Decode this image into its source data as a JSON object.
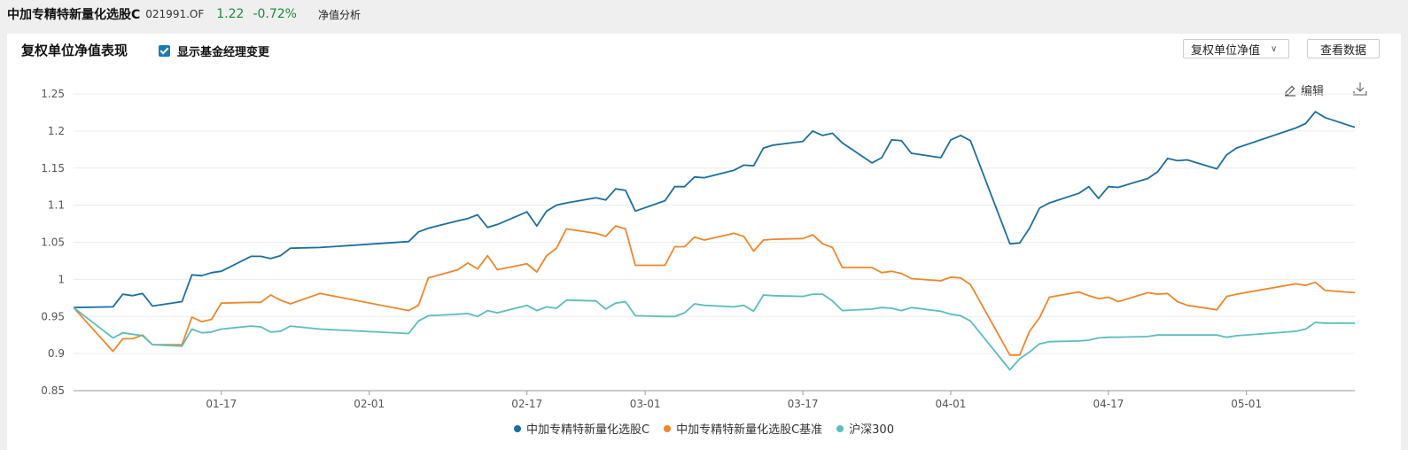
{
  "header": {
    "fund_name": "中加专精特新量化选股C",
    "fund_code": "021991.OF",
    "nav_value": "1.22",
    "nav_change": "-0.72%",
    "nav_tab": "净值分析"
  },
  "panel": {
    "title": "复权单位净值表现",
    "checkbox_label": "显示基金经理变更",
    "select_value": "复权单位净值",
    "view_data_button": "查看数据",
    "edit_label": "编辑"
  },
  "colors": {
    "accent": "#1b7ab0"
  },
  "chart_data": {
    "type": "line",
    "ylim": [
      0.85,
      1.25
    ],
    "yticks": [
      "0.85",
      "0.9",
      "0.95",
      "1",
      "1.05",
      "1.1",
      "1.15",
      "1.2",
      "1.25"
    ],
    "x_range": [
      "2025-01-02",
      "2025-05-12"
    ],
    "xticks": [
      {
        "date": "2025-01-17",
        "label": "01-17"
      },
      {
        "date": "2025-02-01",
        "label": "02-01"
      },
      {
        "date": "2025-02-17",
        "label": "02-17"
      },
      {
        "date": "2025-03-01",
        "label": "03-01"
      },
      {
        "date": "2025-03-17",
        "label": "03-17"
      },
      {
        "date": "2025-04-01",
        "label": "04-01"
      },
      {
        "date": "2025-04-17",
        "label": "04-17"
      },
      {
        "date": "2025-05-01",
        "label": "05-01"
      }
    ],
    "x": [
      "2025-01-02",
      "2025-01-06",
      "2025-01-07",
      "2025-01-08",
      "2025-01-09",
      "2025-01-10",
      "2025-01-13",
      "2025-01-14",
      "2025-01-15",
      "2025-01-16",
      "2025-01-17",
      "2025-01-20",
      "2025-01-21",
      "2025-01-22",
      "2025-01-23",
      "2025-01-24",
      "2025-01-27",
      "2025-02-05",
      "2025-02-06",
      "2025-02-07",
      "2025-02-10",
      "2025-02-11",
      "2025-02-12",
      "2025-02-13",
      "2025-02-14",
      "2025-02-17",
      "2025-02-18",
      "2025-02-19",
      "2025-02-20",
      "2025-02-21",
      "2025-02-24",
      "2025-02-25",
      "2025-02-26",
      "2025-02-27",
      "2025-02-28",
      "2025-03-03",
      "2025-03-04",
      "2025-03-05",
      "2025-03-06",
      "2025-03-07",
      "2025-03-10",
      "2025-03-11",
      "2025-03-12",
      "2025-03-13",
      "2025-03-14",
      "2025-03-17",
      "2025-03-18",
      "2025-03-19",
      "2025-03-20",
      "2025-03-21",
      "2025-03-24",
      "2025-03-25",
      "2025-03-26",
      "2025-03-27",
      "2025-03-28",
      "2025-03-31",
      "2025-04-01",
      "2025-04-02",
      "2025-04-03",
      "2025-04-07",
      "2025-04-08",
      "2025-04-09",
      "2025-04-10",
      "2025-04-11",
      "2025-04-14",
      "2025-04-15",
      "2025-04-16",
      "2025-04-17",
      "2025-04-18",
      "2025-04-21",
      "2025-04-22",
      "2025-04-23",
      "2025-04-24",
      "2025-04-25",
      "2025-04-28",
      "2025-04-29",
      "2025-04-30",
      "2025-05-06",
      "2025-05-07",
      "2025-05-08",
      "2025-05-09",
      "2025-05-12"
    ],
    "series": [
      {
        "name": "中加专精特新量化选股C",
        "color": "#1b6fa0",
        "values": [
          0.962,
          0.963,
          0.98,
          0.978,
          0.981,
          0.964,
          0.97,
          1.006,
          1.005,
          1.009,
          1.011,
          1.031,
          1.031,
          1.028,
          1.032,
          1.042,
          1.043,
          1.051,
          1.064,
          1.069,
          1.079,
          1.082,
          1.087,
          1.07,
          1.074,
          1.091,
          1.072,
          1.092,
          1.1,
          1.103,
          1.11,
          1.107,
          1.122,
          1.12,
          1.092,
          1.106,
          1.125,
          1.125,
          1.138,
          1.137,
          1.147,
          1.154,
          1.153,
          1.177,
          1.181,
          1.186,
          1.2,
          1.194,
          1.197,
          1.184,
          1.157,
          1.164,
          1.188,
          1.187,
          1.17,
          1.164,
          1.188,
          1.194,
          1.187,
          1.048,
          1.049,
          1.069,
          1.096,
          1.103,
          1.116,
          1.125,
          1.109,
          1.125,
          1.124,
          1.136,
          1.145,
          1.163,
          1.16,
          1.161,
          1.149,
          1.168,
          1.177,
          1.204,
          1.21,
          1.226,
          1.218,
          1.205
        ]
      },
      {
        "name": "中加专精特新量化选股C基准",
        "color": "#f0862a",
        "values": [
          0.962,
          0.903,
          0.92,
          0.92,
          0.925,
          0.912,
          0.912,
          0.949,
          0.943,
          0.946,
          0.968,
          0.969,
          0.969,
          0.979,
          0.972,
          0.967,
          0.981,
          0.958,
          0.965,
          1.002,
          1.013,
          1.022,
          1.014,
          1.032,
          1.013,
          1.021,
          1.01,
          1.032,
          1.042,
          1.068,
          1.062,
          1.058,
          1.072,
          1.068,
          1.019,
          1.019,
          1.044,
          1.044,
          1.057,
          1.053,
          1.062,
          1.058,
          1.038,
          1.053,
          1.054,
          1.055,
          1.06,
          1.048,
          1.043,
          1.016,
          1.016,
          1.009,
          1.011,
          1.008,
          1.001,
          0.998,
          1.003,
          1.002,
          0.993,
          0.898,
          0.898,
          0.93,
          0.948,
          0.976,
          0.983,
          0.978,
          0.974,
          0.976,
          0.97,
          0.982,
          0.98,
          0.981,
          0.97,
          0.965,
          0.959,
          0.977,
          0.98,
          0.994,
          0.992,
          0.996,
          0.985,
          0.982
        ]
      },
      {
        "name": "沪深300",
        "color": "#5bbdbe",
        "values": [
          0.962,
          0.921,
          0.928,
          0.926,
          0.924,
          0.912,
          0.91,
          0.933,
          0.928,
          0.929,
          0.933,
          0.937,
          0.936,
          0.929,
          0.93,
          0.937,
          0.933,
          0.927,
          0.944,
          0.951,
          0.953,
          0.954,
          0.95,
          0.958,
          0.955,
          0.965,
          0.958,
          0.963,
          0.961,
          0.972,
          0.971,
          0.96,
          0.968,
          0.97,
          0.951,
          0.95,
          0.95,
          0.955,
          0.967,
          0.965,
          0.963,
          0.965,
          0.957,
          0.979,
          0.978,
          0.977,
          0.98,
          0.98,
          0.971,
          0.958,
          0.96,
          0.962,
          0.961,
          0.958,
          0.962,
          0.957,
          0.953,
          0.951,
          0.944,
          0.878,
          0.893,
          0.902,
          0.913,
          0.916,
          0.917,
          0.918,
          0.921,
          0.922,
          0.922,
          0.923,
          0.925,
          0.925,
          0.925,
          0.925,
          0.925,
          0.922,
          0.924,
          0.93,
          0.933,
          0.942,
          0.941,
          0.941
        ]
      }
    ]
  }
}
